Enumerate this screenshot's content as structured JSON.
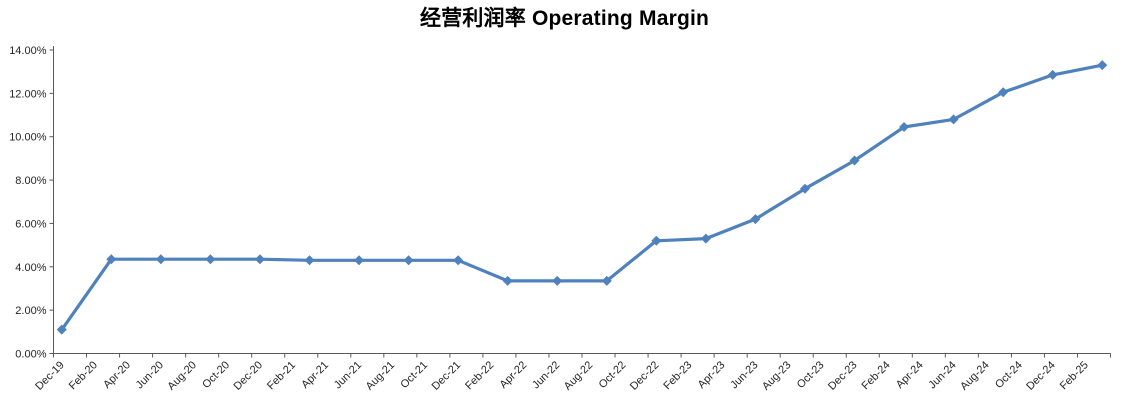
{
  "title": "经营利润率 Operating Margin",
  "colors": {
    "series_line": "#4F81BD",
    "marker": "#4F81BD",
    "axis": "#595959",
    "label_text": "#262626",
    "title_text": "#000000",
    "background": "#FFFFFF"
  },
  "chart_data": {
    "type": "line",
    "title": "经营利润率 Operating Margin",
    "xlabel": "",
    "ylabel": "",
    "grid": false,
    "legend": "none",
    "ylim": [
      0,
      14
    ],
    "y_tick_step_percent": 2,
    "y_tick_labels": [
      "0.00%",
      "2.00%",
      "4.00%",
      "6.00%",
      "8.00%",
      "10.00%",
      "12.00%",
      "14.00%"
    ],
    "x_axis_months_total": 64,
    "x_tick_labels": [
      "Dec-19",
      "Feb-20",
      "Apr-20",
      "Jun-20",
      "Aug-20",
      "Oct-20",
      "Dec-20",
      "Feb-21",
      "Apr-21",
      "Jun-21",
      "Aug-21",
      "Oct-21",
      "Dec-21",
      "Feb-22",
      "Apr-22",
      "Jun-22",
      "Aug-22",
      "Oct-22",
      "Dec-22",
      "Feb-23",
      "Apr-23",
      "Jun-23",
      "Aug-23",
      "Oct-23",
      "Dec-23",
      "Feb-24",
      "Apr-24",
      "Jun-24",
      "Aug-24",
      "Oct-24",
      "Dec-24",
      "Feb-25"
    ],
    "x_tick_label_months": [
      0,
      2,
      4,
      6,
      8,
      10,
      12,
      14,
      16,
      18,
      20,
      22,
      24,
      26,
      28,
      30,
      32,
      34,
      36,
      38,
      40,
      42,
      44,
      46,
      48,
      50,
      52,
      54,
      56,
      58,
      60,
      62
    ],
    "series": [
      {
        "name": "Operating Margin",
        "marker": "diamond",
        "points": [
          {
            "label": "Dec-19",
            "month": 0,
            "value": 1.1
          },
          {
            "label": "Mar-20",
            "month": 3,
            "value": 4.35
          },
          {
            "label": "Jun-20",
            "month": 6,
            "value": 4.35
          },
          {
            "label": "Sep-20",
            "month": 9,
            "value": 4.35
          },
          {
            "label": "Dec-20",
            "month": 12,
            "value": 4.35
          },
          {
            "label": "Mar-21",
            "month": 15,
            "value": 4.3
          },
          {
            "label": "Jun-21",
            "month": 18,
            "value": 4.3
          },
          {
            "label": "Sep-21",
            "month": 21,
            "value": 4.3
          },
          {
            "label": "Dec-21",
            "month": 24,
            "value": 4.3
          },
          {
            "label": "Mar-22",
            "month": 27,
            "value": 3.35
          },
          {
            "label": "Jun-22",
            "month": 30,
            "value": 3.35
          },
          {
            "label": "Sep-22",
            "month": 33,
            "value": 3.35
          },
          {
            "label": "Dec-22",
            "month": 36,
            "value": 5.2
          },
          {
            "label": "Mar-23",
            "month": 39,
            "value": 5.3
          },
          {
            "label": "Jun-23",
            "month": 42,
            "value": 6.2
          },
          {
            "label": "Sep-23",
            "month": 45,
            "value": 7.6
          },
          {
            "label": "Dec-23",
            "month": 48,
            "value": 8.9
          },
          {
            "label": "Mar-24",
            "month": 51,
            "value": 10.45
          },
          {
            "label": "Jun-24",
            "month": 54,
            "value": 10.8
          },
          {
            "label": "Sep-24",
            "month": 57,
            "value": 12.05
          },
          {
            "label": "Dec-24",
            "month": 60,
            "value": 12.85
          },
          {
            "label": "Mar-25",
            "month": 63,
            "value": 13.3
          }
        ]
      }
    ]
  }
}
